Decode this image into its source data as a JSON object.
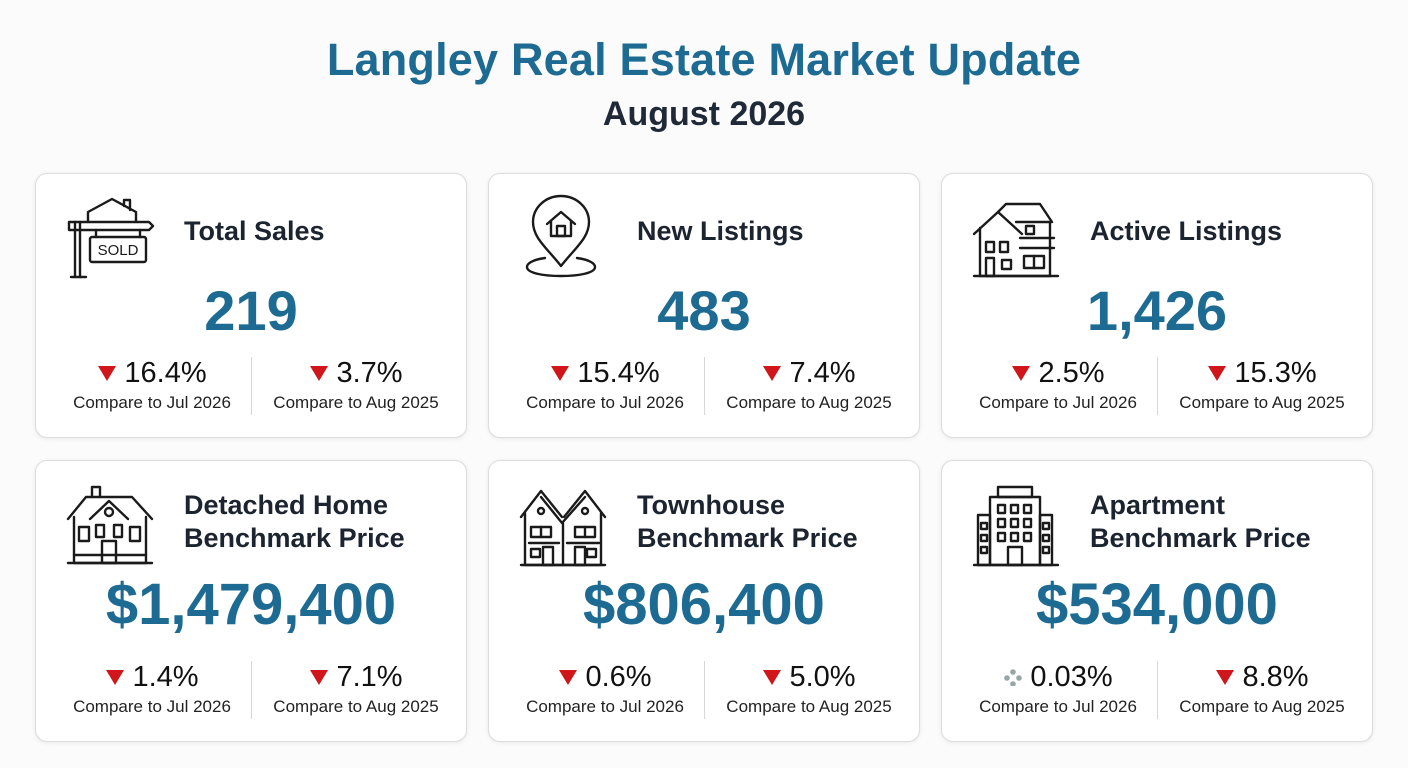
{
  "header": {
    "title": "Langley Real Estate Market Update",
    "subtitle": "August 2026"
  },
  "colors": {
    "accent": "#1d6a92",
    "down": "#d0161b",
    "neutral": "#9aa3a8"
  },
  "cards": [
    {
      "title": "Total Sales",
      "icon": "sold-sign-icon",
      "sign_text": "SOLD",
      "value": "219",
      "stats": [
        {
          "direction": "down",
          "pct": "16.4%",
          "compare": "Compare to Jul 2026"
        },
        {
          "direction": "down",
          "pct": "3.7%",
          "compare": "Compare to Aug 2025"
        }
      ]
    },
    {
      "title": "New Listings",
      "icon": "location-pin-home-icon",
      "value": "483",
      "stats": [
        {
          "direction": "down",
          "pct": "15.4%",
          "compare": "Compare to Jul 2026"
        },
        {
          "direction": "down",
          "pct": "7.4%",
          "compare": "Compare to Aug 2025"
        }
      ]
    },
    {
      "title": "Active Listings",
      "icon": "two-storey-house-icon",
      "value": "1,426",
      "stats": [
        {
          "direction": "down",
          "pct": "2.5%",
          "compare": "Compare to Jul 2026"
        },
        {
          "direction": "down",
          "pct": "15.3%",
          "compare": "Compare to Aug 2025"
        }
      ]
    },
    {
      "title": "Detached Home\nBenchmark Price",
      "icon": "detached-house-icon",
      "value": "$1,479,400",
      "stats": [
        {
          "direction": "down",
          "pct": "1.4%",
          "compare": "Compare to Jul 2026"
        },
        {
          "direction": "down",
          "pct": "7.1%",
          "compare": "Compare to Aug 2025"
        }
      ]
    },
    {
      "title": "Townhouse\nBenchmark Price",
      "icon": "townhouse-icon",
      "value": "$806,400",
      "stats": [
        {
          "direction": "down",
          "pct": "0.6%",
          "compare": "Compare to Jul 2026"
        },
        {
          "direction": "down",
          "pct": "5.0%",
          "compare": "Compare to Aug 2025"
        }
      ]
    },
    {
      "title": "Apartment\nBenchmark Price",
      "icon": "apartment-building-icon",
      "value": "$534,000",
      "stats": [
        {
          "direction": "neutral",
          "pct": "0.03%",
          "compare": "Compare to Jul 2026"
        },
        {
          "direction": "down",
          "pct": "8.8%",
          "compare": "Compare to Aug 2025"
        }
      ]
    }
  ]
}
